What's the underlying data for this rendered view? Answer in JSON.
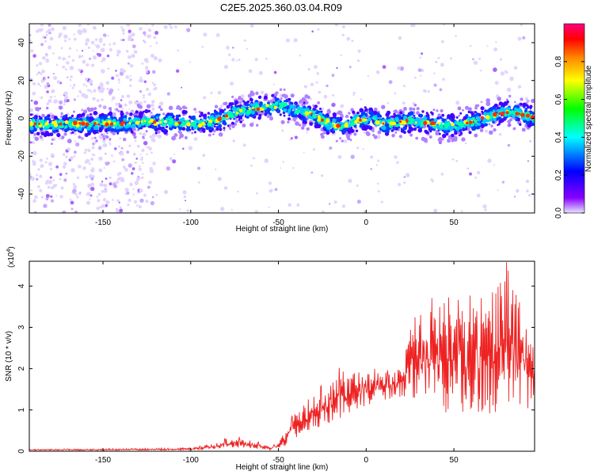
{
  "title": "C2E5.2025.360.03.04.R09",
  "chart_data": [
    {
      "type": "heatmap",
      "name": "spectrogram",
      "xlabel": "Height of straight line (km)",
      "ylabel": "Frequency (Hz)",
      "xlim": [
        -192,
        96
      ],
      "ylim": [
        -50,
        50
      ],
      "xticks": [
        -150,
        -100,
        -50,
        0,
        50
      ],
      "yticks": [
        -40,
        -20,
        0,
        20,
        40
      ],
      "ridge_centerline": {
        "x": [
          -192,
          -170,
          -150,
          -130,
          -110,
          -95,
          -85,
          -75,
          -65,
          -55,
          -50,
          -45,
          -40,
          -35,
          -30,
          -25,
          -20,
          -15,
          -10,
          -5,
          0,
          5,
          10,
          15,
          20,
          25,
          30,
          40,
          50,
          60,
          70,
          80,
          90,
          96
        ],
        "y": [
          -3,
          -3,
          -3,
          -2,
          -2,
          -3,
          -1,
          3,
          5,
          6,
          7,
          6,
          4,
          3,
          2,
          -1,
          -3,
          -4,
          -3,
          -1,
          0,
          -1,
          -3,
          -3,
          -2,
          -1,
          -2,
          -3,
          -4,
          -2,
          1,
          3,
          2,
          0
        ]
      },
      "colorbar": {
        "label": "Normalized spectral amplitude",
        "range": [
          0,
          1
        ],
        "ticks": [
          "0.0",
          "0.2",
          "0.4",
          "0.6",
          "0.8"
        ],
        "colormap": [
          "#e6e6ff",
          "#8800ff",
          "#0000ff",
          "#00ffff",
          "#00ff00",
          "#ffff00",
          "#ff8800",
          "#ff0000",
          "#ff0080"
        ]
      }
    },
    {
      "type": "line",
      "name": "snr",
      "xlabel": "Height of straight line (km)",
      "ylabel": "SNR (10 * v/v)",
      "y_multiplier_label": "(x10",
      "y_multiplier_exp": "4",
      "xlim": [
        -192,
        96
      ],
      "ylim": [
        0,
        4.6
      ],
      "xticks": [
        -150,
        -100,
        -50,
        0,
        50
      ],
      "yticks": [
        0,
        1,
        2,
        3,
        4
      ],
      "color": "#ee2222",
      "envelope": {
        "x": [
          -192,
          -150,
          -100,
          -85,
          -80,
          -75,
          -70,
          -60,
          -55,
          -50,
          -45,
          -40,
          -35,
          -30,
          -25,
          -20,
          -15,
          -10,
          -5,
          0,
          5,
          10,
          15,
          20,
          25,
          30,
          40,
          50,
          60,
          70,
          80,
          90,
          96
        ],
        "low": [
          0.02,
          0.02,
          0.03,
          0.05,
          0.08,
          0.1,
          0.08,
          0.05,
          0.04,
          0.05,
          0.15,
          0.3,
          0.45,
          0.55,
          0.6,
          0.7,
          0.8,
          0.9,
          1.0,
          1.1,
          1.2,
          1.2,
          1.3,
          1.3,
          1.3,
          1.2,
          0.9,
          0.9,
          0.9,
          0.9,
          0.9,
          0.8,
          0.8
        ],
        "high": [
          0.05,
          0.06,
          0.08,
          0.2,
          0.3,
          0.35,
          0.3,
          0.2,
          0.1,
          0.2,
          0.6,
          1.0,
          1.2,
          1.4,
          1.6,
          1.8,
          2.0,
          1.9,
          1.9,
          2.0,
          2.0,
          1.9,
          2.0,
          2.0,
          3.1,
          3.3,
          3.6,
          3.7,
          3.8,
          3.8,
          4.5,
          3.9,
          3.2
        ]
      }
    }
  ]
}
